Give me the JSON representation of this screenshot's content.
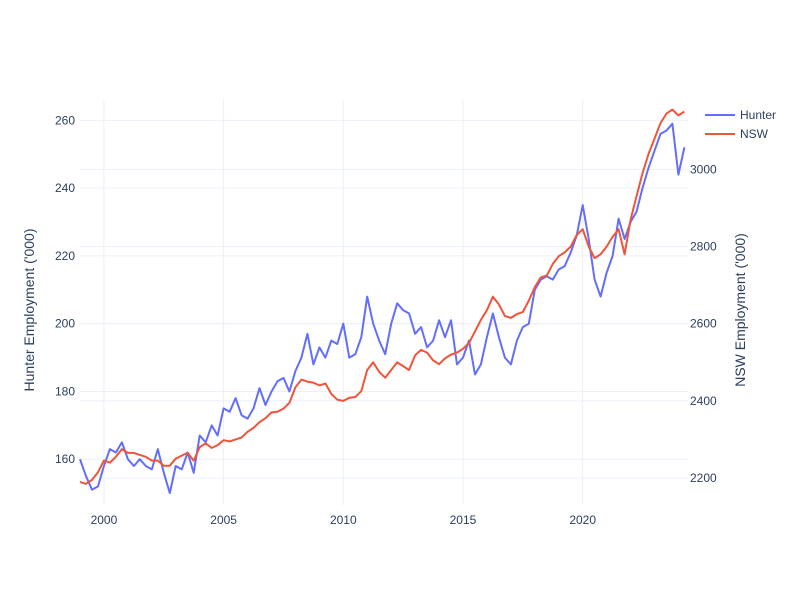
{
  "chart_data": {
    "type": "line",
    "title": "",
    "xlabel": "",
    "xlim": [
      1999.0,
      2024.4
    ],
    "x_ticks": [
      2000,
      2005,
      2010,
      2015,
      2020
    ],
    "x_tick_labels": [
      "2000",
      "2005",
      "2010",
      "2015",
      "2020"
    ],
    "y_left": {
      "label": "Hunter Employment ('000)",
      "ylim": [
        146.5,
        266
      ],
      "ticks": [
        160,
        180,
        200,
        220,
        240,
        260
      ],
      "tick_labels": [
        "160",
        "180",
        "200",
        "220",
        "240",
        "260"
      ]
    },
    "y_right": {
      "label": "NSW Employment ('000)",
      "ylim": [
        2130,
        3180
      ],
      "ticks": [
        2200,
        2400,
        2600,
        2800,
        3000
      ],
      "tick_labels": [
        "2200",
        "2400",
        "2600",
        "2800",
        "3000"
      ]
    },
    "grid": true,
    "legend_position": "top-right",
    "series": [
      {
        "name": "Hunter",
        "axis": "left",
        "color": "#636efa",
        "points": [
          [
            1999.0,
            160
          ],
          [
            1999.25,
            155
          ],
          [
            1999.5,
            151
          ],
          [
            1999.75,
            152
          ],
          [
            2000.0,
            158
          ],
          [
            2000.25,
            163
          ],
          [
            2000.5,
            162
          ],
          [
            2000.75,
            165
          ],
          [
            2001.0,
            160
          ],
          [
            2001.25,
            158
          ],
          [
            2001.5,
            160
          ],
          [
            2001.75,
            158
          ],
          [
            2002.0,
            157
          ],
          [
            2002.25,
            163
          ],
          [
            2002.5,
            156
          ],
          [
            2002.75,
            150
          ],
          [
            2003.0,
            158
          ],
          [
            2003.25,
            157
          ],
          [
            2003.5,
            162
          ],
          [
            2003.75,
            156
          ],
          [
            2004.0,
            167
          ],
          [
            2004.25,
            165
          ],
          [
            2004.5,
            170
          ],
          [
            2004.75,
            167
          ],
          [
            2005.0,
            175
          ],
          [
            2005.25,
            174
          ],
          [
            2005.5,
            178
          ],
          [
            2005.75,
            173
          ],
          [
            2006.0,
            172
          ],
          [
            2006.25,
            175
          ],
          [
            2006.5,
            181
          ],
          [
            2006.75,
            176
          ],
          [
            2007.0,
            180
          ],
          [
            2007.25,
            183
          ],
          [
            2007.5,
            184
          ],
          [
            2007.75,
            180
          ],
          [
            2008.0,
            186
          ],
          [
            2008.25,
            190
          ],
          [
            2008.5,
            197
          ],
          [
            2008.75,
            188
          ],
          [
            2009.0,
            193
          ],
          [
            2009.25,
            190
          ],
          [
            2009.5,
            195
          ],
          [
            2009.75,
            194
          ],
          [
            2010.0,
            200
          ],
          [
            2010.25,
            190
          ],
          [
            2010.5,
            191
          ],
          [
            2010.75,
            196
          ],
          [
            2011.0,
            208
          ],
          [
            2011.25,
            200
          ],
          [
            2011.5,
            195
          ],
          [
            2011.75,
            191
          ],
          [
            2012.0,
            200
          ],
          [
            2012.25,
            206
          ],
          [
            2012.5,
            204
          ],
          [
            2012.75,
            203
          ],
          [
            2013.0,
            197
          ],
          [
            2013.25,
            199
          ],
          [
            2013.5,
            193
          ],
          [
            2013.75,
            195
          ],
          [
            2014.0,
            201
          ],
          [
            2014.25,
            196
          ],
          [
            2014.5,
            201
          ],
          [
            2014.75,
            188
          ],
          [
            2015.0,
            190
          ],
          [
            2015.25,
            195
          ],
          [
            2015.5,
            185
          ],
          [
            2015.75,
            188
          ],
          [
            2016.0,
            196
          ],
          [
            2016.25,
            203
          ],
          [
            2016.5,
            196
          ],
          [
            2016.75,
            190
          ],
          [
            2017.0,
            188
          ],
          [
            2017.25,
            195
          ],
          [
            2017.5,
            199
          ],
          [
            2017.75,
            200
          ],
          [
            2018.0,
            210
          ],
          [
            2018.25,
            213
          ],
          [
            2018.5,
            214
          ],
          [
            2018.75,
            213
          ],
          [
            2019.0,
            216
          ],
          [
            2019.25,
            217
          ],
          [
            2019.5,
            221
          ],
          [
            2019.75,
            226
          ],
          [
            2020.0,
            235
          ],
          [
            2020.25,
            225
          ],
          [
            2020.5,
            213
          ],
          [
            2020.75,
            208
          ],
          [
            2021.0,
            215
          ],
          [
            2021.25,
            220
          ],
          [
            2021.5,
            231
          ],
          [
            2021.75,
            225
          ],
          [
            2022.0,
            230
          ],
          [
            2022.25,
            233
          ],
          [
            2022.5,
            240
          ],
          [
            2022.75,
            246
          ],
          [
            2023.0,
            251
          ],
          [
            2023.25,
            256
          ],
          [
            2023.5,
            257
          ],
          [
            2023.75,
            259
          ],
          [
            2024.0,
            244
          ],
          [
            2024.25,
            252
          ]
        ]
      },
      {
        "name": "NSW",
        "axis": "right",
        "color": "#ef553b",
        "points": [
          [
            1999.0,
            2190
          ],
          [
            1999.25,
            2185
          ],
          [
            1999.5,
            2195
          ],
          [
            1999.75,
            2215
          ],
          [
            2000.0,
            2245
          ],
          [
            2000.25,
            2240
          ],
          [
            2000.5,
            2255
          ],
          [
            2000.75,
            2275
          ],
          [
            2001.0,
            2265
          ],
          [
            2001.25,
            2265
          ],
          [
            2001.5,
            2260
          ],
          [
            2001.75,
            2255
          ],
          [
            2002.0,
            2245
          ],
          [
            2002.25,
            2245
          ],
          [
            2002.5,
            2232
          ],
          [
            2002.75,
            2232
          ],
          [
            2003.0,
            2250
          ],
          [
            2003.25,
            2258
          ],
          [
            2003.5,
            2265
          ],
          [
            2003.75,
            2245
          ],
          [
            2004.0,
            2280
          ],
          [
            2004.25,
            2290
          ],
          [
            2004.5,
            2278
          ],
          [
            2004.75,
            2285
          ],
          [
            2005.0,
            2298
          ],
          [
            2005.25,
            2295
          ],
          [
            2005.5,
            2300
          ],
          [
            2005.75,
            2305
          ],
          [
            2006.0,
            2320
          ],
          [
            2006.25,
            2330
          ],
          [
            2006.5,
            2345
          ],
          [
            2006.75,
            2355
          ],
          [
            2007.0,
            2370
          ],
          [
            2007.25,
            2372
          ],
          [
            2007.5,
            2380
          ],
          [
            2007.75,
            2395
          ],
          [
            2008.0,
            2435
          ],
          [
            2008.25,
            2455
          ],
          [
            2008.5,
            2450
          ],
          [
            2008.75,
            2447
          ],
          [
            2009.0,
            2440
          ],
          [
            2009.25,
            2445
          ],
          [
            2009.5,
            2418
          ],
          [
            2009.75,
            2403
          ],
          [
            2010.0,
            2400
          ],
          [
            2010.25,
            2408
          ],
          [
            2010.5,
            2410
          ],
          [
            2010.75,
            2425
          ],
          [
            2011.0,
            2480
          ],
          [
            2011.25,
            2500
          ],
          [
            2011.5,
            2475
          ],
          [
            2011.75,
            2460
          ],
          [
            2012.0,
            2480
          ],
          [
            2012.25,
            2500
          ],
          [
            2012.5,
            2490
          ],
          [
            2012.75,
            2480
          ],
          [
            2013.0,
            2518
          ],
          [
            2013.25,
            2532
          ],
          [
            2013.5,
            2525
          ],
          [
            2013.75,
            2505
          ],
          [
            2014.0,
            2495
          ],
          [
            2014.25,
            2510
          ],
          [
            2014.5,
            2520
          ],
          [
            2014.75,
            2525
          ],
          [
            2015.0,
            2535
          ],
          [
            2015.25,
            2550
          ],
          [
            2015.5,
            2580
          ],
          [
            2015.75,
            2610
          ],
          [
            2016.0,
            2635
          ],
          [
            2016.25,
            2670
          ],
          [
            2016.5,
            2650
          ],
          [
            2016.75,
            2620
          ],
          [
            2017.0,
            2615
          ],
          [
            2017.25,
            2625
          ],
          [
            2017.5,
            2630
          ],
          [
            2017.75,
            2660
          ],
          [
            2018.0,
            2695
          ],
          [
            2018.25,
            2720
          ],
          [
            2018.5,
            2725
          ],
          [
            2018.75,
            2755
          ],
          [
            2019.0,
            2775
          ],
          [
            2019.25,
            2785
          ],
          [
            2019.5,
            2800
          ],
          [
            2019.75,
            2830
          ],
          [
            2020.0,
            2845
          ],
          [
            2020.25,
            2800
          ],
          [
            2020.5,
            2770
          ],
          [
            2020.75,
            2780
          ],
          [
            2021.0,
            2800
          ],
          [
            2021.25,
            2825
          ],
          [
            2021.5,
            2845
          ],
          [
            2021.75,
            2780
          ],
          [
            2022.0,
            2870
          ],
          [
            2022.25,
            2930
          ],
          [
            2022.5,
            2990
          ],
          [
            2022.75,
            3040
          ],
          [
            2023.0,
            3080
          ],
          [
            2023.25,
            3120
          ],
          [
            2023.5,
            3145
          ],
          [
            2023.75,
            3155
          ],
          [
            2024.0,
            3140
          ],
          [
            2024.25,
            3150
          ]
        ]
      }
    ]
  }
}
